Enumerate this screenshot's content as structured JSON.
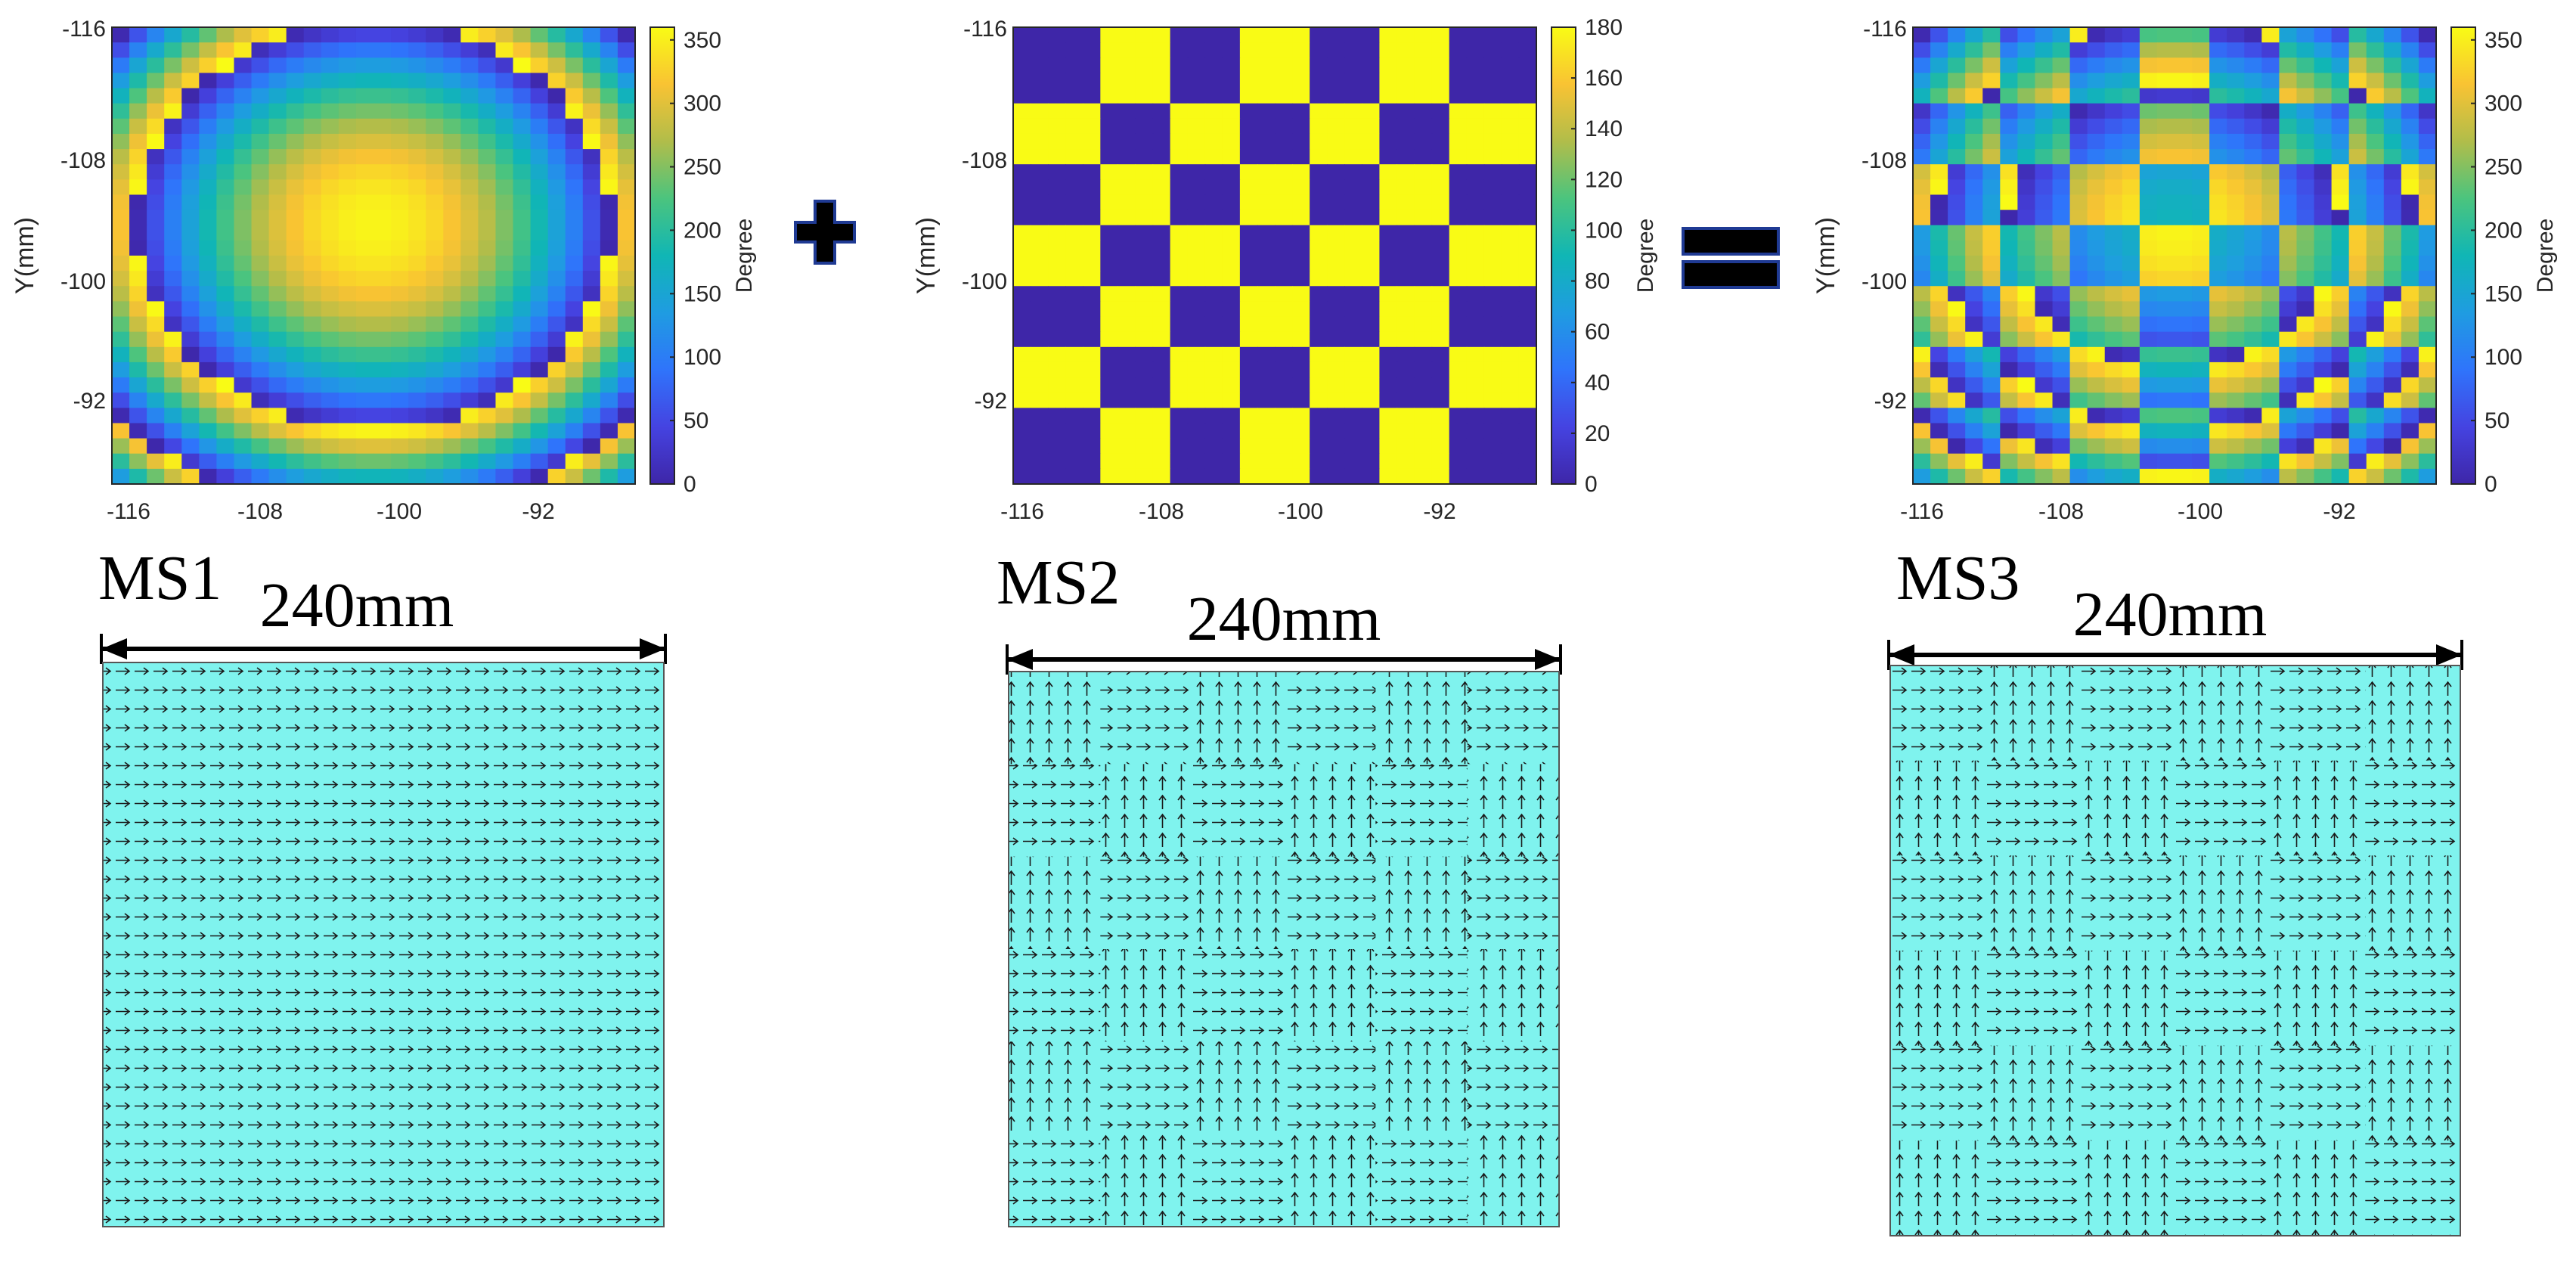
{
  "panels": [
    {
      "id": "ms1",
      "y_axis_label": "Y(mm)",
      "x_ticks": [
        "-116",
        "-108",
        "-100",
        "-92"
      ],
      "y_ticks": [
        "-116",
        "-108",
        "-100",
        "-92"
      ],
      "colorbar_label": "Degree",
      "colorbar_ticks": [
        "0",
        "50",
        "100",
        "150",
        "200",
        "250",
        "300",
        "350"
      ],
      "colorbar_max": 360,
      "pattern": "radial phase",
      "metasurface_label": "MS1",
      "dimension_label": "240mm"
    },
    {
      "id": "ms2",
      "y_axis_label": "Y(mm)",
      "x_ticks": [
        "-116",
        "-108",
        "-100",
        "-92"
      ],
      "y_ticks": [
        "-116",
        "-108",
        "-100",
        "-92"
      ],
      "colorbar_label": "Degree",
      "colorbar_ticks": [
        "0",
        "20",
        "40",
        "60",
        "80",
        "100",
        "120",
        "140",
        "160",
        "180"
      ],
      "colorbar_max": 180,
      "pattern": "checkerboard 6x6 (0 / 180)",
      "metasurface_label": "MS2",
      "dimension_label": "240mm"
    },
    {
      "id": "ms3",
      "y_axis_label": "Y(mm)",
      "x_ticks": [
        "-116",
        "-108",
        "-100",
        "-92"
      ],
      "y_ticks": [
        "-116",
        "-108",
        "-100",
        "-92"
      ],
      "colorbar_label": "Degree",
      "colorbar_ticks": [
        "0",
        "50",
        "100",
        "150",
        "200",
        "250",
        "300",
        "350"
      ],
      "colorbar_max": 360,
      "pattern": "radial + checkerboard (mod 360)",
      "metasurface_label": "MS3",
      "dimension_label": "240mm"
    }
  ],
  "operators": {
    "plus": "plus-sign",
    "equals": "equals-sign"
  },
  "colors": {
    "parula_low": "#3e26a8",
    "parula_high": "#f9fb15",
    "metasurface_fill": "#7ff3ee",
    "operator_fill": "#000000",
    "operator_outline": "#1f3a93"
  }
}
